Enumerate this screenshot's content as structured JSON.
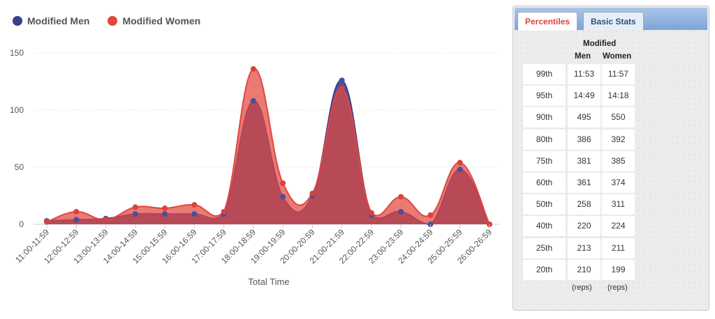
{
  "legend": {
    "men": {
      "label": "Modified Men",
      "color": "#3b3f8f"
    },
    "women": {
      "label": "Modified Women",
      "color": "#e2463f"
    }
  },
  "chart_data": {
    "type": "area",
    "xlabel": "Total Time",
    "ylabel": "",
    "ylim": [
      0,
      150
    ],
    "yticks": [
      0,
      50,
      100,
      150
    ],
    "grid": true,
    "legend_position": "top-left",
    "categories": [
      "11:00-11:59",
      "12:00-12:59",
      "13:00-13:59",
      "14:00-14:59",
      "15:00-15:59",
      "16:00-16:59",
      "17:00-17:59",
      "18:00-18:59",
      "19:00-19:59",
      "20:00-20:59",
      "21:00-21:59",
      "22:00-22:59",
      "23:00-23:59",
      "24:00-24:59",
      "25:00-25:59",
      "26:00-26:59"
    ],
    "series": [
      {
        "name": "Modified Men",
        "color": "#3b3f8f",
        "values": [
          3,
          4,
          5,
          9,
          9,
          9,
          9,
          108,
          24,
          25,
          126,
          8,
          11,
          0,
          48,
          0
        ]
      },
      {
        "name": "Modified Women",
        "color": "#e2463f",
        "values": [
          2,
          11,
          4,
          15,
          14,
          17,
          11,
          136,
          36,
          27,
          119,
          10,
          24,
          8,
          54,
          0
        ]
      }
    ]
  },
  "stats_panel": {
    "tabs": [
      {
        "label": "Percentiles",
        "active": true
      },
      {
        "label": "Basic Stats",
        "active": false
      }
    ],
    "header_group": "Modified",
    "col_men": "Men",
    "col_women": "Women",
    "rows": [
      {
        "pct": "99th",
        "men": "11:53",
        "women": "11:57"
      },
      {
        "pct": "95th",
        "men": "14:49",
        "women": "14:18"
      },
      {
        "pct": "90th",
        "men": "495",
        "women": "550"
      },
      {
        "pct": "80th",
        "men": "386",
        "women": "392"
      },
      {
        "pct": "75th",
        "men": "381",
        "women": "385"
      },
      {
        "pct": "60th",
        "men": "361",
        "women": "374"
      },
      {
        "pct": "50th",
        "men": "258",
        "women": "311"
      },
      {
        "pct": "40th",
        "men": "220",
        "women": "224"
      },
      {
        "pct": "25th",
        "men": "213",
        "women": "211"
      },
      {
        "pct": "20th",
        "men": "210",
        "women": "199"
      }
    ],
    "unit_men": "(reps)",
    "unit_women": "(reps)"
  }
}
